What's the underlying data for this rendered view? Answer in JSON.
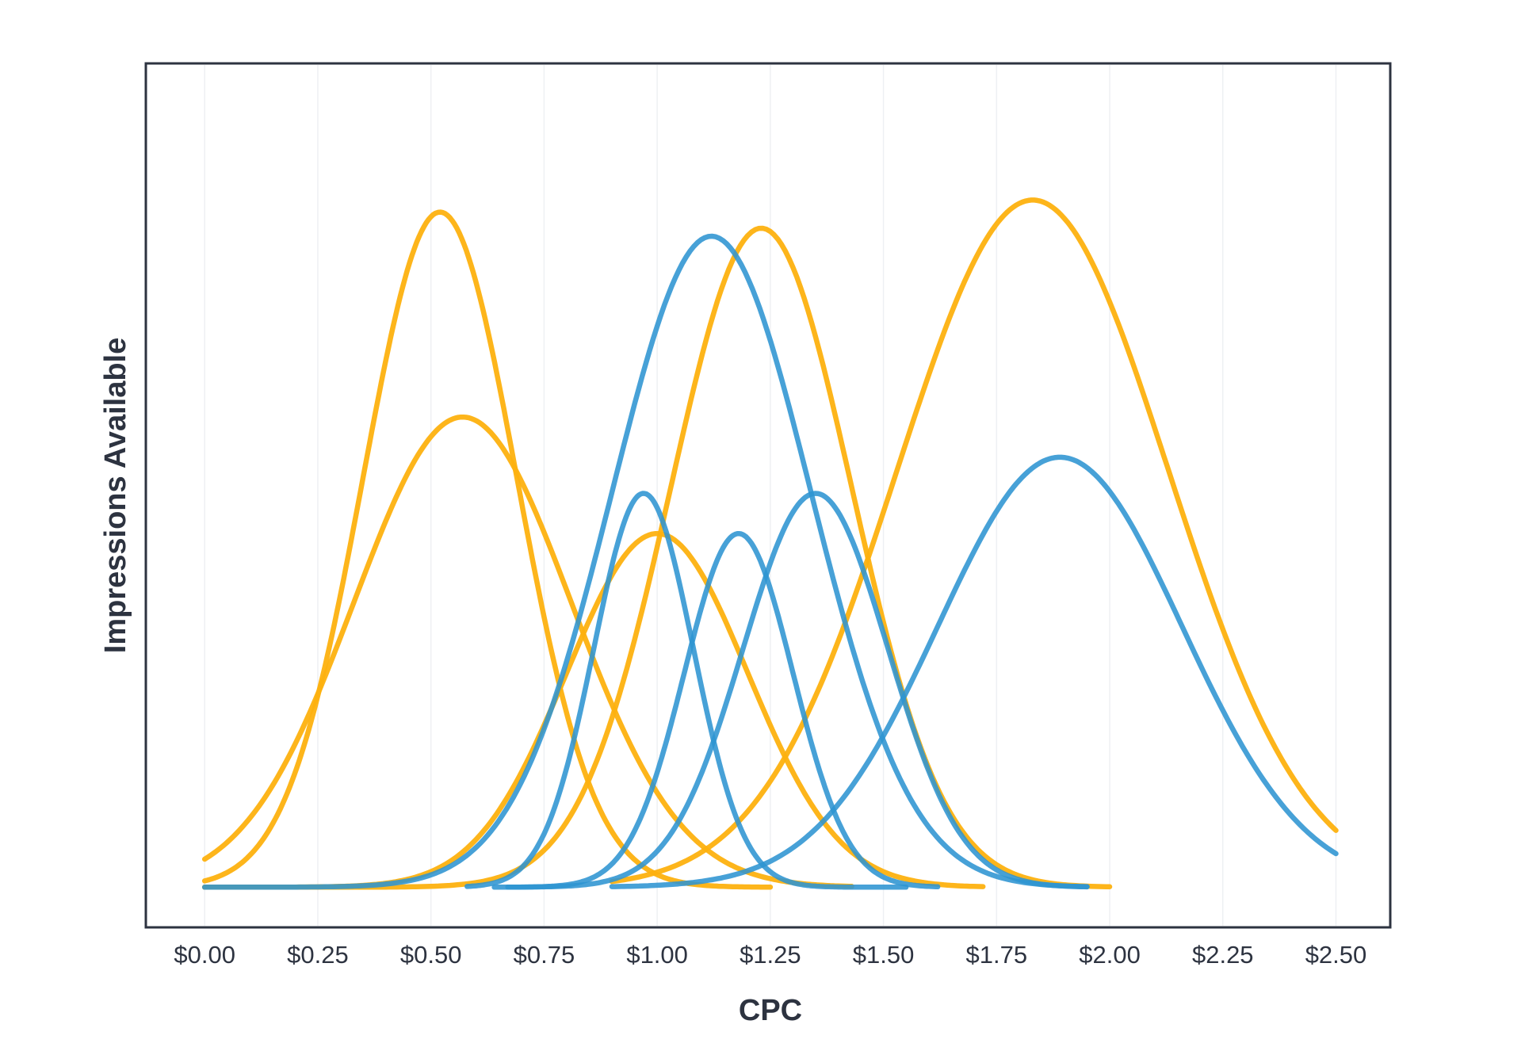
{
  "chart_data": {
    "type": "line",
    "title": "",
    "xlabel": "CPC",
    "ylabel": "Impressions Available",
    "xlim": [
      -0.13,
      2.62
    ],
    "ylim": [
      -0.1,
      2.05
    ],
    "y_ticks_shown": false,
    "grid": {
      "vertical": true,
      "horizontal": false
    },
    "x_ticks": [
      {
        "value": 0.0,
        "label": "$0.00"
      },
      {
        "value": 0.25,
        "label": "$0.25"
      },
      {
        "value": 0.5,
        "label": "$0.50"
      },
      {
        "value": 0.75,
        "label": "$0.75"
      },
      {
        "value": 1.0,
        "label": "$1.00"
      },
      {
        "value": 1.25,
        "label": "$1.25"
      },
      {
        "value": 1.5,
        "label": "$1.50"
      },
      {
        "value": 1.75,
        "label": "$1.75"
      },
      {
        "value": 2.0,
        "label": "$2.00"
      },
      {
        "value": 2.25,
        "label": "$2.25"
      },
      {
        "value": 2.5,
        "label": "$2.50"
      }
    ],
    "colors": {
      "orange": "#FDB10F",
      "blue": "#2E94D2"
    },
    "series": [
      {
        "color": "orange",
        "kind": "gaussian",
        "mean": 0.52,
        "sd": 0.17,
        "peak": 1.68,
        "x_range": [
          0.0,
          1.25
        ]
      },
      {
        "color": "orange",
        "kind": "gaussian",
        "mean": 0.57,
        "sd": 0.24,
        "peak": 1.17,
        "x_range": [
          0.0,
          1.43
        ]
      },
      {
        "color": "orange",
        "kind": "gaussian",
        "mean": 1.0,
        "sd": 0.2,
        "peak": 0.88,
        "x_range": [
          0.0,
          1.72
        ]
      },
      {
        "color": "orange",
        "kind": "gaussian",
        "mean": 1.23,
        "sd": 0.2,
        "peak": 1.64,
        "x_range": [
          0.0,
          2.0
        ]
      },
      {
        "color": "orange",
        "kind": "gaussian",
        "mean": 1.83,
        "sd": 0.3,
        "peak": 1.71,
        "x_range": [
          0.9,
          2.5
        ]
      },
      {
        "color": "blue",
        "kind": "gaussian",
        "mean": 1.12,
        "sd": 0.22,
        "peak": 1.62,
        "x_range": [
          0.0,
          1.95
        ]
      },
      {
        "color": "blue",
        "kind": "gaussian",
        "mean": 0.97,
        "sd": 0.11,
        "peak": 0.98,
        "x_range": [
          0.58,
          1.55
        ]
      },
      {
        "color": "blue",
        "kind": "gaussian",
        "mean": 1.18,
        "sd": 0.12,
        "peak": 0.88,
        "x_range": [
          0.67,
          1.62
        ]
      },
      {
        "color": "blue",
        "kind": "gaussian",
        "mean": 1.35,
        "sd": 0.16,
        "peak": 0.98,
        "x_range": [
          0.64,
          1.95
        ]
      },
      {
        "color": "blue",
        "kind": "gaussian",
        "mean": 1.89,
        "sd": 0.27,
        "peak": 1.07,
        "x_range": [
          0.9,
          2.5
        ]
      }
    ]
  }
}
